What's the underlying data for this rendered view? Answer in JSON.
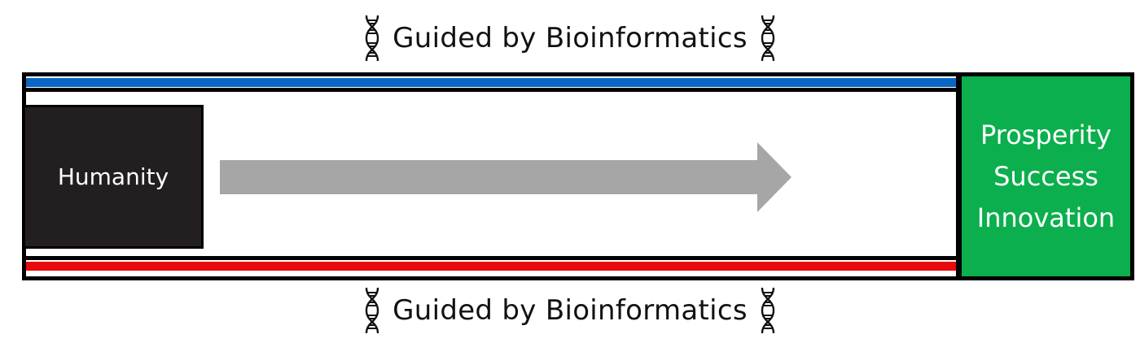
{
  "diagram": {
    "caption_top": "Guided by Bioinformatics",
    "caption_bottom": "Guided by Bioinformatics",
    "source_label": "Humanity",
    "target_lines": [
      "Prosperity",
      "Success",
      "Innovation"
    ],
    "icons": [
      "dna-icon",
      "dna-icon",
      "dna-icon",
      "dna-icon"
    ],
    "arrow": "right-arrow",
    "colors": {
      "top_bar": "#0A66C2",
      "bottom_bar": "#E80B0B",
      "source_box": "#231F20",
      "target_box": "#0BAF4D",
      "arrow": "#A6A6A6"
    }
  }
}
